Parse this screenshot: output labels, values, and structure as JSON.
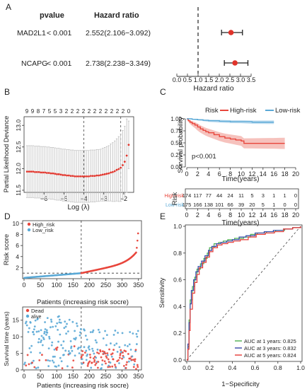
{
  "panels": {
    "A": {
      "letter": "A"
    },
    "B": {
      "letter": "B"
    },
    "C": {
      "letter": "C"
    },
    "D": {
      "letter": "D"
    },
    "E": {
      "letter": "E"
    }
  },
  "colors": {
    "red": "#e8463c",
    "red_fill": "#f4b3ac",
    "blue": "#5aa9d6",
    "blue_fill": "#bcdcef",
    "gray": "#aaaaaa"
  },
  "chart_data": [
    {
      "id": "A",
      "type": "forest",
      "col_headers": [
        "pvalue",
        "Hazard ratio"
      ],
      "rows": [
        {
          "gene": "MAD2L1",
          "pvalue": "< 0.001",
          "hr_text": "2.552(2.106−3.092)",
          "hr": 2.552,
          "lo": 2.106,
          "hi": 3.092
        },
        {
          "gene": "NCAPG",
          "pvalue": "< 0.001",
          "hr_text": "2.738(2.238−3.349)",
          "hr": 2.738,
          "lo": 2.238,
          "hi": 3.349
        }
      ],
      "xlim": [
        0.0,
        3.5
      ],
      "xticks": [
        0.0,
        0.5,
        1.0,
        1.5,
        2.0,
        2.5,
        3.0,
        3.5
      ],
      "xtick_labels": [
        "0.0",
        "0.5",
        "1.0",
        "1.5",
        "2.0",
        "2.5",
        "3.0",
        "3.5"
      ],
      "reference_line": 1.0,
      "xlabel": "Hazard ratio"
    },
    {
      "id": "B",
      "type": "scatter",
      "xlabel": "Log (λ)",
      "ylabel": "Partial Likelihood Deviance",
      "top_labels": [
        "9",
        "9",
        "8",
        "7",
        "5",
        "5",
        "3",
        "2",
        "2",
        "2",
        "2",
        "2",
        "2",
        "2",
        "2",
        "2",
        "2",
        "2",
        "0"
      ],
      "xlim": [
        -7,
        -1.5
      ],
      "ylim": [
        11.45,
        13.2
      ],
      "xticks": [
        -6,
        -5,
        -4,
        -3,
        -2
      ],
      "xtick_labels": [
        "−6",
        "−5",
        "−4",
        "−3",
        "−2"
      ],
      "yticks": [
        11.5,
        12.0,
        12.5,
        13.0
      ],
      "ytick_labels": [
        "11.5",
        "12.0",
        "12.5",
        "13.0"
      ],
      "vlines": [
        -4.0,
        -2.15
      ],
      "x": [
        -6.85,
        -6.75,
        -6.65,
        -6.55,
        -6.45,
        -6.35,
        -6.25,
        -6.15,
        -6.05,
        -5.95,
        -5.85,
        -5.75,
        -5.65,
        -5.55,
        -5.45,
        -5.35,
        -5.25,
        -5.15,
        -5.05,
        -4.95,
        -4.85,
        -4.75,
        -4.65,
        -4.55,
        -4.45,
        -4.35,
        -4.25,
        -4.15,
        -4.05,
        -3.95,
        -3.85,
        -3.75,
        -3.65,
        -3.55,
        -3.45,
        -3.35,
        -3.25,
        -3.15,
        -3.05,
        -2.95,
        -2.85,
        -2.75,
        -2.65,
        -2.55,
        -2.45,
        -2.35,
        -2.25,
        -2.15,
        -2.05,
        -1.95,
        -1.85,
        -1.75
      ],
      "y": [
        11.93,
        11.93,
        11.93,
        11.93,
        11.92,
        11.92,
        11.92,
        11.91,
        11.91,
        11.91,
        11.9,
        11.9,
        11.89,
        11.89,
        11.88,
        11.87,
        11.87,
        11.86,
        11.85,
        11.85,
        11.84,
        11.84,
        11.83,
        11.83,
        11.82,
        11.82,
        11.82,
        11.82,
        11.82,
        11.82,
        11.82,
        11.82,
        11.83,
        11.83,
        11.83,
        11.84,
        11.84,
        11.85,
        11.86,
        11.87,
        11.88,
        11.89,
        11.91,
        11.92,
        11.94,
        11.97,
        11.99,
        12.02,
        12.08,
        12.16,
        12.3,
        12.55
      ],
      "err": [
        0.6,
        0.6,
        0.6,
        0.6,
        0.6,
        0.6,
        0.6,
        0.6,
        0.6,
        0.6,
        0.6,
        0.6,
        0.6,
        0.6,
        0.6,
        0.6,
        0.6,
        0.6,
        0.6,
        0.6,
        0.6,
        0.6,
        0.6,
        0.6,
        0.6,
        0.6,
        0.6,
        0.6,
        0.6,
        0.6,
        0.6,
        0.6,
        0.6,
        0.6,
        0.6,
        0.6,
        0.6,
        0.6,
        0.61,
        0.62,
        0.63,
        0.64,
        0.66,
        0.68,
        0.7,
        0.72,
        0.75,
        0.78,
        0.8,
        0.82,
        0.85,
        0.55
      ]
    },
    {
      "id": "C",
      "type": "line",
      "legend_title": "Risk",
      "series": [
        {
          "name": "High-risk",
          "x": [
            0,
            0.3,
            0.6,
            1,
            1.5,
            2,
            2.5,
            3,
            3.5,
            4,
            5,
            6,
            7,
            8,
            9,
            10,
            10.5,
            12,
            14,
            16,
            17,
            18
          ],
          "y": [
            1.0,
            0.96,
            0.93,
            0.9,
            0.87,
            0.83,
            0.79,
            0.76,
            0.73,
            0.71,
            0.67,
            0.63,
            0.6,
            0.58,
            0.56,
            0.54,
            0.49,
            0.49,
            0.49,
            0.49,
            0.49,
            0.49
          ]
        },
        {
          "name": "Low-risk",
          "x": [
            0,
            1,
            2,
            3,
            4,
            6,
            8,
            10,
            12,
            14,
            16
          ],
          "y": [
            1.0,
            0.99,
            0.98,
            0.97,
            0.96,
            0.95,
            0.94,
            0.94,
            0.93,
            0.93,
            0.93
          ]
        }
      ],
      "annotation": "p<0.001",
      "xlabel": "Time(years)",
      "ylabel": "Survival probability",
      "xlim": [
        0,
        20
      ],
      "ylim": [
        0,
        1
      ],
      "xticks": [
        0,
        2,
        4,
        6,
        8,
        10,
        12,
        14,
        16,
        18,
        20
      ],
      "xtick_labels": [
        "0",
        "2",
        "4",
        "6",
        "8",
        "10",
        "12",
        "14",
        "16",
        "18",
        "20"
      ],
      "yticks": [
        0,
        0.25,
        0.5,
        0.75,
        1.0
      ],
      "ytick_labels": [
        "0.00",
        "0.25",
        "0.50",
        "0.75",
        "1.00"
      ]
    },
    {
      "id": "C-risk-table",
      "type": "table",
      "ylabel": "Risk",
      "xlabel": "Time(years)",
      "rows": [
        {
          "name": "High-risk",
          "values": [
            "174",
            "117",
            "77",
            "44",
            "24",
            "11",
            "5",
            "3",
            "1",
            "1",
            "0"
          ]
        },
        {
          "name": "Low-risk",
          "values": [
            "175",
            "166",
            "138",
            "101",
            "66",
            "39",
            "20",
            "5",
            "1",
            "0",
            "0"
          ]
        }
      ],
      "xticks": [
        0,
        2,
        4,
        6,
        8,
        10,
        12,
        14,
        16,
        18,
        20
      ],
      "xtick_labels": [
        "0",
        "2",
        "4",
        "6",
        "8",
        "10",
        "12",
        "14",
        "16",
        "18",
        "20"
      ]
    },
    {
      "id": "D-top",
      "type": "scatter",
      "ylabel": "Risk score",
      "xlabel": "Patients (increasing risk socre)",
      "series": [
        {
          "name": "High_risk"
        },
        {
          "name": "Low_risk"
        }
      ],
      "n_patients": 349,
      "cutoff_index": 175,
      "cutoff_value": 1.0,
      "xlim": [
        0,
        355
      ],
      "ylim": [
        0,
        10.5
      ],
      "xticks": [
        0,
        50,
        100,
        150,
        200,
        250,
        300,
        350
      ],
      "xtick_labels": [
        "0",
        "50",
        "100",
        "150",
        "200",
        "250",
        "300",
        "350"
      ],
      "yticks": [
        2,
        4,
        6,
        8,
        10
      ],
      "ytick_labels": [
        "2",
        "4",
        "6",
        "8",
        "10"
      ]
    },
    {
      "id": "D-bottom",
      "type": "scatter",
      "ylabel": "Survival time (years)",
      "xlabel": "Patients (increasing risk socre)",
      "series": [
        {
          "name": "Dead"
        },
        {
          "name": "alive"
        }
      ],
      "xlim": [
        0,
        355
      ],
      "ylim": [
        0,
        19
      ],
      "xticks": [
        0,
        50,
        100,
        150,
        200,
        250,
        300,
        350
      ],
      "xtick_labels": [
        "0",
        "50",
        "100",
        "150",
        "200",
        "250",
        "300",
        "350"
      ],
      "yticks": [
        0,
        5,
        10,
        15
      ],
      "ytick_labels": [
        "0",
        "5",
        "10",
        "15"
      ]
    },
    {
      "id": "E",
      "type": "line",
      "xlabel": "1−Specificity",
      "ylabel": "Sensitivity",
      "xlim": [
        0,
        1
      ],
      "ylim": [
        0,
        1
      ],
      "xticks": [
        0,
        0.2,
        0.4,
        0.6,
        0.8,
        1.0
      ],
      "xtick_labels": [
        "0.0",
        "0.2",
        "0.4",
        "0.6",
        "0.8",
        "1.0"
      ],
      "yticks": [
        0,
        0.2,
        0.4,
        0.6,
        0.8,
        1.0
      ],
      "ytick_labels": [
        "0.0",
        "0.2",
        "0.4",
        "0.6",
        "0.8",
        "1.0"
      ],
      "series": [
        {
          "name": "AUC at 1 years: 0.825",
          "color": "#4caf50",
          "x": [
            0,
            0.01,
            0.02,
            0.03,
            0.05,
            0.07,
            0.09,
            0.12,
            0.15,
            0.18,
            0.2,
            0.24,
            0.28,
            0.32,
            0.36,
            0.42,
            0.5,
            0.56,
            0.62,
            0.7,
            0.78,
            0.86,
            0.93,
            1.0
          ],
          "y": [
            0,
            0.1,
            0.3,
            0.45,
            0.55,
            0.62,
            0.68,
            0.72,
            0.76,
            0.8,
            0.84,
            0.87,
            0.88,
            0.89,
            0.9,
            0.91,
            0.92,
            0.94,
            0.95,
            0.96,
            0.97,
            0.98,
            0.99,
            1.0
          ]
        },
        {
          "name": "AUC at 3 years: 0.832",
          "color": "#3548a8",
          "x": [
            0,
            0.01,
            0.02,
            0.03,
            0.04,
            0.06,
            0.08,
            0.1,
            0.13,
            0.16,
            0.19,
            0.22,
            0.26,
            0.3,
            0.35,
            0.4,
            0.46,
            0.52,
            0.6,
            0.68,
            0.76,
            0.85,
            0.93,
            1.0
          ],
          "y": [
            0,
            0.12,
            0.28,
            0.42,
            0.52,
            0.6,
            0.66,
            0.7,
            0.74,
            0.78,
            0.82,
            0.85,
            0.87,
            0.88,
            0.89,
            0.9,
            0.92,
            0.93,
            0.95,
            0.96,
            0.97,
            0.98,
            0.99,
            1.0
          ]
        },
        {
          "name": "AUC at 5 years: 0.824",
          "color": "#e53935",
          "x": [
            0,
            0.01,
            0.02,
            0.03,
            0.05,
            0.07,
            0.09,
            0.11,
            0.14,
            0.17,
            0.2,
            0.23,
            0.27,
            0.31,
            0.36,
            0.41,
            0.47,
            0.54,
            0.61,
            0.69,
            0.77,
            0.85,
            0.93,
            1.0
          ],
          "y": [
            0,
            0.08,
            0.22,
            0.38,
            0.5,
            0.58,
            0.64,
            0.69,
            0.73,
            0.77,
            0.81,
            0.84,
            0.86,
            0.87,
            0.88,
            0.89,
            0.9,
            0.92,
            0.94,
            0.95,
            0.96,
            0.98,
            0.99,
            1.0
          ]
        }
      ],
      "diagonal": true
    }
  ]
}
